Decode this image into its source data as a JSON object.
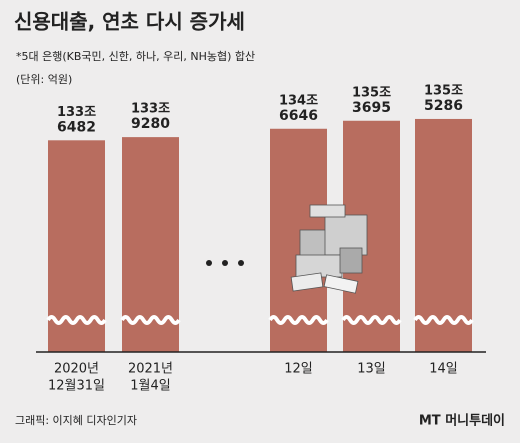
{
  "chart_data": {
    "type": "bar",
    "title": "신용대출, 연초 다시 증가세",
    "subtitle": "*5대 은행(KB국민, 신한, 하나, 우리, NH농협) 합산",
    "unit_note": "(단위: 억원)",
    "categories": [
      [
        "2020년",
        "12월31일"
      ],
      [
        "2021년",
        "1월4일"
      ],
      [
        "12일"
      ],
      [
        "13일"
      ],
      [
        "14일"
      ]
    ],
    "values": [
      1336482,
      1339280,
      1346646,
      1353695,
      1355286
    ],
    "value_labels": [
      [
        "133조",
        "6482"
      ],
      [
        "133조",
        "9280"
      ],
      [
        "134조",
        "6646"
      ],
      [
        "135조",
        "3695"
      ],
      [
        "135조",
        "5286"
      ]
    ],
    "color": "#b86d5f",
    "ylim": [
      1150000,
      1360000
    ],
    "credit": "그래픽: 이지혜 디자인기자",
    "logo": "MT 머니투데이"
  }
}
